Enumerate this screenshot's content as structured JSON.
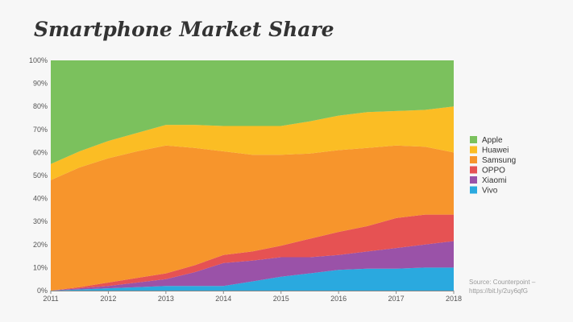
{
  "chart_data": {
    "type": "area",
    "stacked": true,
    "normalized": true,
    "title": "Smartphone Market Share",
    "xlabel": "",
    "ylabel": "",
    "x": [
      2011,
      2011.5,
      2012,
      2012.5,
      2013,
      2013.5,
      2014,
      2014.5,
      2015,
      2015.5,
      2016,
      2016.5,
      2017,
      2017.5,
      2018
    ],
    "x_ticks": [
      "2011",
      "2012",
      "2013",
      "2014",
      "2015",
      "2016",
      "2017",
      "2018"
    ],
    "y_ticks": [
      "0%",
      "10%",
      "20%",
      "30%",
      "40%",
      "50%",
      "60%",
      "70%",
      "80%",
      "90%",
      "100%"
    ],
    "ylim": [
      0,
      100
    ],
    "grid": false,
    "legend_position": "right",
    "series": [
      {
        "name": "Vivo",
        "color": "#2aa9df",
        "values": [
          0,
          0.5,
          1,
          1.5,
          2,
          2,
          2,
          4,
          6,
          7.5,
          9,
          9.5,
          9.5,
          10,
          10
        ]
      },
      {
        "name": "Xiaomi",
        "color": "#9a52a8",
        "values": [
          0,
          0.5,
          1,
          2,
          3,
          6,
          10,
          9,
          8.5,
          7,
          6.5,
          7.5,
          9,
          10,
          11.5
        ]
      },
      {
        "name": "OPPO",
        "color": "#e65253",
        "values": [
          0,
          0.5,
          1.5,
          2,
          2.5,
          3,
          3.5,
          4,
          5,
          8,
          10,
          11,
          13,
          13,
          11.5
        ]
      },
      {
        "name": "Samsung",
        "color": "#f7952c",
        "values": [
          48,
          52,
          54,
          55,
          55.5,
          51,
          45,
          42,
          39.5,
          37,
          35.5,
          34,
          31.5,
          29.5,
          27
        ]
      },
      {
        "name": "Huawei",
        "color": "#fbbd24",
        "values": [
          7,
          7,
          7.5,
          8,
          9,
          10,
          11,
          12.5,
          12.5,
          14,
          15,
          15.5,
          15,
          16,
          20
        ]
      },
      {
        "name": "Apple",
        "color": "#7bc15d",
        "values": [
          45,
          39.5,
          35,
          31.5,
          28,
          28,
          28.5,
          28.5,
          28.5,
          26.5,
          24,
          22.5,
          22,
          21.5,
          20
        ]
      }
    ],
    "legend_order": [
      "Apple",
      "Huawei",
      "Samsung",
      "OPPO",
      "Xiaomi",
      "Vivo"
    ]
  },
  "source_note": "Source: Counterpoint – https://bit.ly/2uy6qfG"
}
